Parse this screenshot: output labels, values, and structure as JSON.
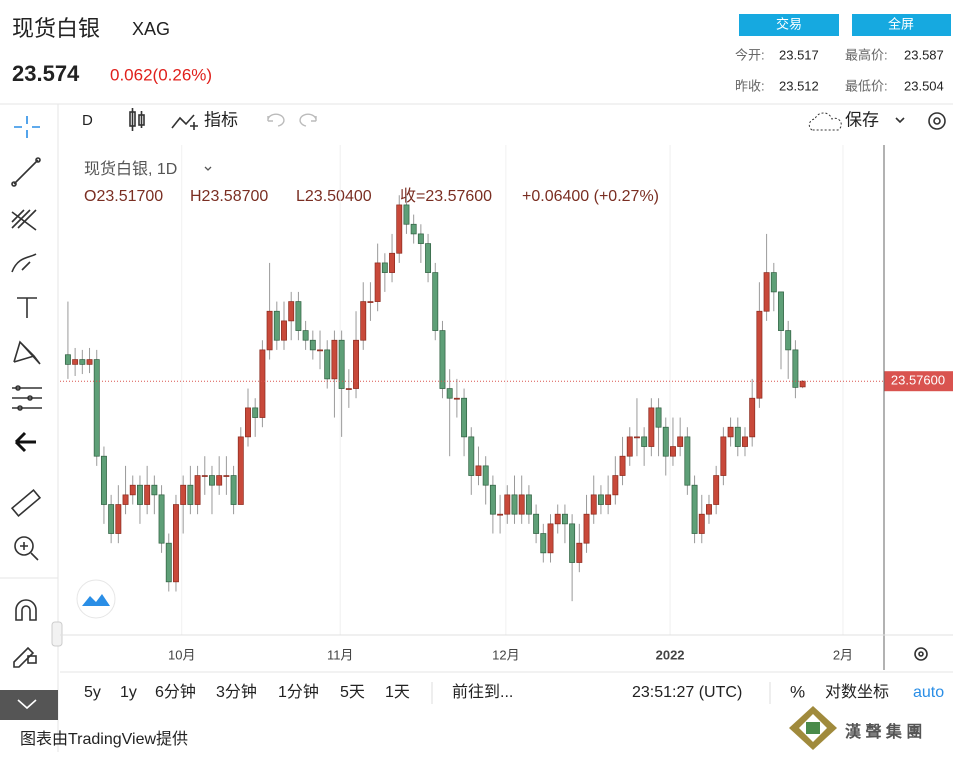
{
  "header": {
    "title": "现货白银",
    "symbol": "XAG",
    "price": "23.574",
    "change": "0.062(0.26%)",
    "buttons": [
      "交易",
      "全屏"
    ],
    "stats": [
      {
        "label": "今开:",
        "value": "23.517"
      },
      {
        "label": "最高价:",
        "value": "23.587"
      },
      {
        "label": "昨收:",
        "value": "23.512"
      },
      {
        "label": "最低价:",
        "value": "23.504"
      }
    ]
  },
  "toolbar": {
    "interval": "D",
    "indicators": "指标",
    "save": "保存"
  },
  "chart_data": {
    "type": "candlestick",
    "title": "现货白银, 1D",
    "legend": [
      "O23.51700",
      "H23.58700",
      "L23.50400",
      "收=23.57600",
      "+0.06400 (+0.27%)"
    ],
    "up_color": "#c8493a",
    "down_color": "#5e9f77",
    "last_price": {
      "value": 23.576,
      "label": "23.57600"
    },
    "ylim": [
      20.95,
      26.02
    ],
    "xlim": [
      -1.1,
      113.3
    ],
    "xticks": [
      {
        "value": 15.8,
        "label": "10月"
      },
      {
        "value": 37.8,
        "label": "11月"
      },
      {
        "value": 60.8,
        "label": "12月"
      },
      {
        "value": 83.6,
        "label": "2022"
      },
      {
        "value": 107.6,
        "label": "2月"
      }
    ],
    "open": [
      23.85,
      23.75,
      23.8,
      23.75,
      23.8,
      22.8,
      22.3,
      22.0,
      22.3,
      22.4,
      22.5,
      22.3,
      22.5,
      22.4,
      21.9,
      21.5,
      22.3,
      22.5,
      22.3,
      22.6,
      22.6,
      22.5,
      22.6,
      22.6,
      22.3,
      23.0,
      23.3,
      23.2,
      23.9,
      24.3,
      24.0,
      24.2,
      24.4,
      24.1,
      24.0,
      23.9,
      23.9,
      23.6,
      24.0,
      23.5,
      23.5,
      24.0,
      24.4,
      24.4,
      24.8,
      24.7,
      24.9,
      25.4,
      25.2,
      25.1,
      25.0,
      24.7,
      24.1,
      23.5,
      23.4,
      23.4,
      23.0,
      22.6,
      22.7,
      22.5,
      22.2,
      22.2,
      22.4,
      22.2,
      22.4,
      22.2,
      22.0,
      21.8,
      22.1,
      22.2,
      22.1,
      21.7,
      21.9,
      22.2,
      22.4,
      22.3,
      22.4,
      22.6,
      22.8,
      23.0,
      23.0,
      22.9,
      23.3,
      23.1,
      22.8,
      22.9,
      23.0,
      22.5,
      22.0,
      22.2,
      22.3,
      22.6,
      23.0,
      23.1,
      22.9,
      23.0,
      23.4,
      24.3,
      24.7,
      24.5,
      24.1,
      23.9,
      23.517
    ],
    "high": [
      24.4,
      23.92,
      23.9,
      23.92,
      23.9,
      22.9,
      22.4,
      22.5,
      22.7,
      22.6,
      22.6,
      22.7,
      22.6,
      22.5,
      22.0,
      22.4,
      22.6,
      22.7,
      22.7,
      22.8,
      22.7,
      22.8,
      22.8,
      22.7,
      23.1,
      23.5,
      23.4,
      24.0,
      24.8,
      24.4,
      24.4,
      24.5,
      24.5,
      24.2,
      24.1,
      24.1,
      24.0,
      24.1,
      24.1,
      23.7,
      24.3,
      24.6,
      24.6,
      25.0,
      24.9,
      25.1,
      25.5,
      25.5,
      25.3,
      25.2,
      25.1,
      24.8,
      24.2,
      23.7,
      23.6,
      23.5,
      23.1,
      22.9,
      22.8,
      22.6,
      22.4,
      22.5,
      22.6,
      22.6,
      22.5,
      22.3,
      22.1,
      22.2,
      22.3,
      22.3,
      22.2,
      22.1,
      22.4,
      22.6,
      22.5,
      22.6,
      22.8,
      23.0,
      23.1,
      23.4,
      23.1,
      23.4,
      23.4,
      23.2,
      23.2,
      23.2,
      23.1,
      22.6,
      22.4,
      22.4,
      22.7,
      23.1,
      23.2,
      23.2,
      23.1,
      23.6,
      24.6,
      25.1,
      24.8,
      24.5,
      24.2,
      24.0,
      23.587
    ],
    "low": [
      23.6,
      23.63,
      23.65,
      23.66,
      22.7,
      22.1,
      21.9,
      21.9,
      22.2,
      22.3,
      22.1,
      22.2,
      22.2,
      21.8,
      21.4,
      21.4,
      22.0,
      22.2,
      22.2,
      22.4,
      22.2,
      22.4,
      22.4,
      22.2,
      22.3,
      22.9,
      23.0,
      23.1,
      23.8,
      23.9,
      23.9,
      24.0,
      24.0,
      23.9,
      23.8,
      23.7,
      23.5,
      23.2,
      23.0,
      23.3,
      23.4,
      23.9,
      24.2,
      24.3,
      24.5,
      24.6,
      24.8,
      25.1,
      25.0,
      24.8,
      24.6,
      24.0,
      23.4,
      22.8,
      23.2,
      22.8,
      22.4,
      22.5,
      22.3,
      22.0,
      22.0,
      22.1,
      22.1,
      22.1,
      22.1,
      21.9,
      21.7,
      21.7,
      22.0,
      21.9,
      21.3,
      21.6,
      21.8,
      22.1,
      22.2,
      22.2,
      22.3,
      22.5,
      22.7,
      22.8,
      22.7,
      22.8,
      22.8,
      22.6,
      22.7,
      22.8,
      22.4,
      21.9,
      21.9,
      22.1,
      22.2,
      22.5,
      22.9,
      22.8,
      22.8,
      22.9,
      23.3,
      24.2,
      24.3,
      23.7,
      23.6,
      23.4,
      23.504
    ],
    "close": [
      23.75,
      23.8,
      23.75,
      23.8,
      22.8,
      22.3,
      22.0,
      22.3,
      22.4,
      22.5,
      22.3,
      22.5,
      22.4,
      21.9,
      21.5,
      22.3,
      22.5,
      22.3,
      22.6,
      22.6,
      22.5,
      22.6,
      22.6,
      22.3,
      23.0,
      23.3,
      23.2,
      23.9,
      24.3,
      24.0,
      24.2,
      24.4,
      24.1,
      24.0,
      23.9,
      23.9,
      23.6,
      24.0,
      23.5,
      23.5,
      24.0,
      24.4,
      24.4,
      24.8,
      24.7,
      24.9,
      25.4,
      25.2,
      25.1,
      25.0,
      24.7,
      24.1,
      23.5,
      23.4,
      23.4,
      23.0,
      22.6,
      22.7,
      22.5,
      22.2,
      22.2,
      22.4,
      22.2,
      22.4,
      22.2,
      22.0,
      21.8,
      22.1,
      22.2,
      22.1,
      21.7,
      21.9,
      22.2,
      22.4,
      22.3,
      22.4,
      22.6,
      22.8,
      23.0,
      23.0,
      22.9,
      23.3,
      23.1,
      22.8,
      22.9,
      23.0,
      22.5,
      22.0,
      22.2,
      22.3,
      22.6,
      23.0,
      23.1,
      22.9,
      23.0,
      23.4,
      24.3,
      24.7,
      24.5,
      24.1,
      23.9,
      23.512,
      23.576
    ]
  },
  "bottom_bar": {
    "ranges": [
      "5y",
      "1y",
      "6分钟",
      "3分钟",
      "1分钟",
      "5天",
      "1天"
    ],
    "goto": "前往到...",
    "time": "23:51:27 (UTC)",
    "percent": "%",
    "log": "对数坐标",
    "auto": "auto"
  },
  "footer": {
    "credit": "图表由TradingView提供",
    "logo": "漢 聲 集 團"
  }
}
